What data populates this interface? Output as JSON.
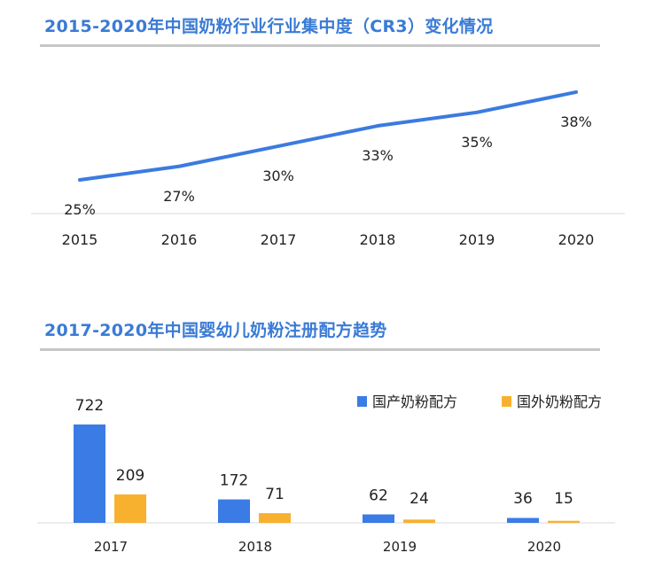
{
  "chart_data": [
    {
      "type": "line",
      "title": "2015-2020年中国奶粉行业行业集中度（CR3）变化情况",
      "categories": [
        "2015",
        "2016",
        "2017",
        "2018",
        "2019",
        "2020"
      ],
      "values": [
        25,
        27,
        30,
        33,
        35,
        38
      ],
      "labels": [
        "25%",
        "27%",
        "30%",
        "33%",
        "35%",
        "38%"
      ],
      "unit": "%",
      "color": "#3b7be0",
      "grid": false
    },
    {
      "type": "bar",
      "title": "2017-2020年中国婴幼儿奶粉注册配方趋势",
      "categories": [
        "2017",
        "2018",
        "2019",
        "2020"
      ],
      "series": [
        {
          "name": "国产奶粉配方",
          "values": [
            722,
            172,
            62,
            36
          ],
          "color": "#3b7be6"
        },
        {
          "name": "国外奶粉配方",
          "values": [
            209,
            71,
            24,
            15
          ],
          "color": "#f8b12e"
        }
      ],
      "legend": "top-right",
      "grid": false
    }
  ]
}
